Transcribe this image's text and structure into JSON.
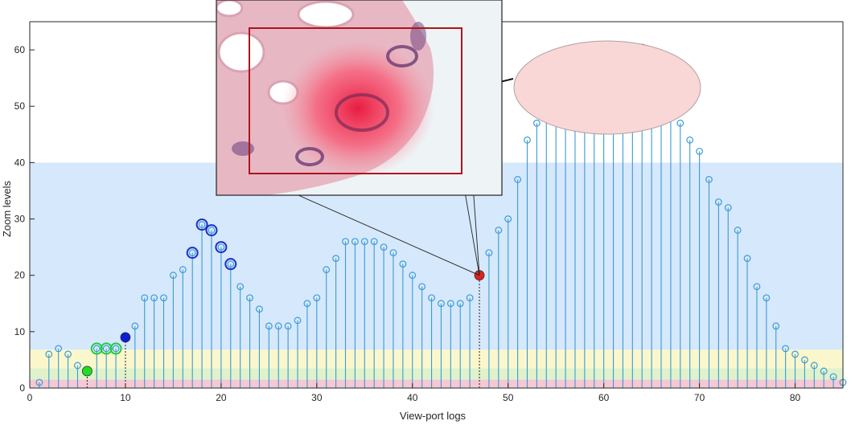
{
  "chart_data": {
    "type": "scatter",
    "title": "",
    "xlabel": "View-port logs",
    "ylabel": "Zoom levels",
    "xlim": [
      0,
      85
    ],
    "ylim": [
      0,
      65
    ],
    "x_ticks": [
      0,
      10,
      20,
      30,
      40,
      50,
      60,
      70,
      80
    ],
    "y_ticks": [
      0,
      10,
      20,
      30,
      40,
      50,
      60
    ],
    "grid": false,
    "legend": "none",
    "bands": [
      {
        "y0": 0,
        "y1": 1.5,
        "color": "#f4c8d4"
      },
      {
        "y0": 1.5,
        "y1": 3.5,
        "color": "#dff2cc"
      },
      {
        "y0": 3.5,
        "y1": 6.8,
        "color": "#fbf7cc"
      },
      {
        "y0": 6.8,
        "y1": 40,
        "color": "#d6e8fb"
      }
    ],
    "series": [
      {
        "x": [
          1,
          2,
          3,
          4,
          5,
          6,
          7,
          8,
          9,
          10,
          11,
          12,
          13,
          14,
          15,
          16,
          17,
          18,
          19,
          20,
          21,
          22,
          23,
          24,
          25,
          26,
          27,
          28,
          29,
          30,
          31,
          32,
          33,
          34,
          35,
          36,
          37,
          38,
          39,
          40,
          41,
          42,
          43,
          44,
          45,
          46,
          47,
          48,
          49,
          50,
          51,
          52,
          53,
          54,
          55,
          56,
          57,
          58,
          59,
          60,
          61,
          62,
          63,
          64,
          65,
          66,
          67,
          68,
          69,
          70,
          71,
          72,
          73,
          74,
          75,
          76,
          77,
          78,
          79,
          80,
          81,
          82,
          83,
          84,
          85
        ],
        "y": [
          1,
          6,
          7,
          6,
          4,
          3,
          7,
          7,
          7,
          9,
          11,
          16,
          16,
          16,
          20,
          21,
          24,
          29,
          28,
          25,
          22,
          18,
          16,
          14,
          11,
          11,
          11,
          12,
          15,
          16,
          21,
          23,
          26,
          26,
          26,
          26,
          25,
          24,
          22,
          20,
          18,
          16,
          15,
          15,
          15,
          16,
          20,
          24,
          28,
          30,
          37,
          44,
          47,
          50,
          56,
          55,
          54,
          60,
          60,
          60,
          60,
          60,
          60,
          60,
          58,
          55,
          51,
          47,
          44,
          42,
          37,
          33,
          32,
          28,
          23,
          18,
          16,
          11,
          7,
          6,
          5,
          4,
          3,
          2,
          1
        ],
        "color": "#3a9bd5"
      }
    ],
    "highlights": [
      {
        "x": [
          6
        ],
        "style": "filled",
        "color": "#22dd22"
      },
      {
        "x": [
          7,
          8,
          9
        ],
        "style": "ring",
        "color": "#22cc44"
      },
      {
        "x": [
          10
        ],
        "style": "filled",
        "color": "#0a1fd6"
      },
      {
        "x": [
          17,
          18,
          19,
          20,
          21
        ],
        "style": "ring",
        "color": "#1a2fc8"
      },
      {
        "x": [
          47
        ],
        "style": "filled",
        "color": "#e02020"
      },
      {
        "x": [
          54,
          55,
          56,
          57,
          58,
          59,
          60,
          61,
          62,
          63,
          64,
          65,
          66,
          67
        ],
        "style": "ring",
        "color": "#e01818"
      }
    ]
  }
}
